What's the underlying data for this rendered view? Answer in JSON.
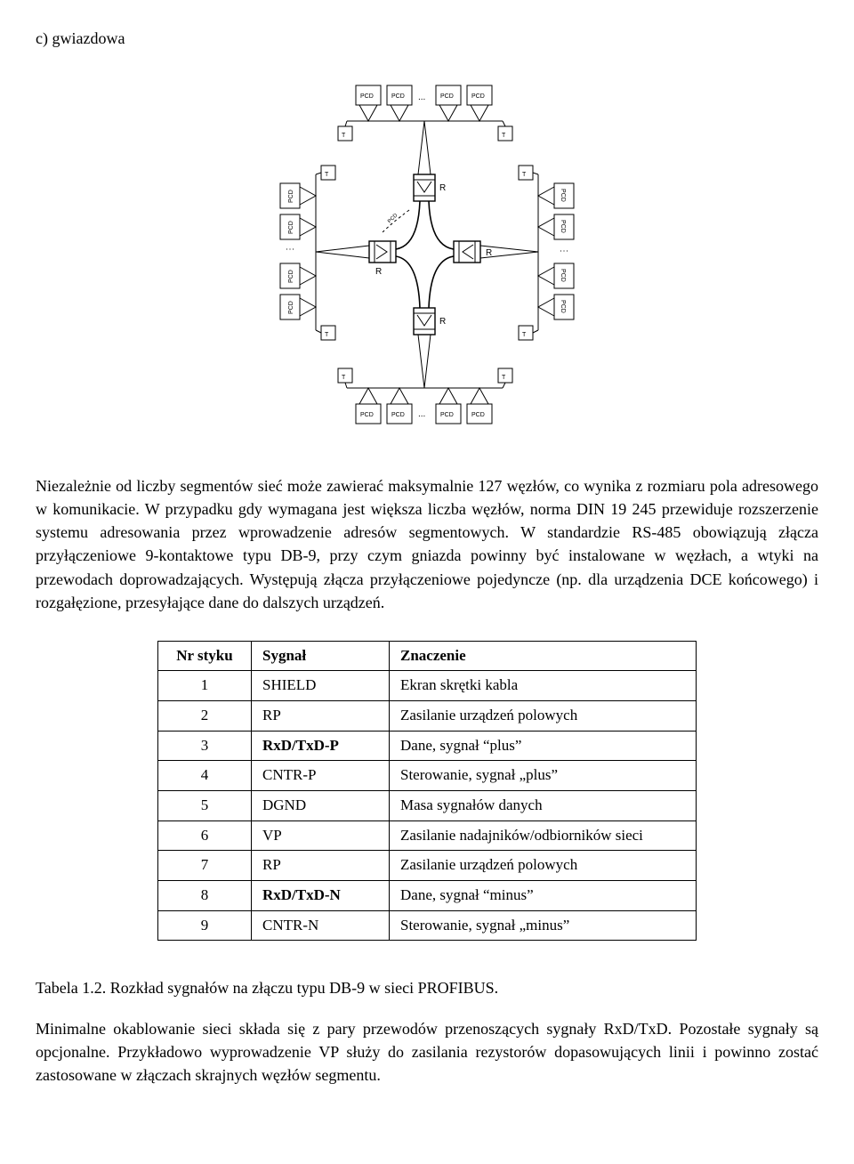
{
  "heading": "c) gwiazdowa",
  "diagram": {
    "node_label": "PCD",
    "terminator_label": "T",
    "repeater_label": "R",
    "ellipsis": "..."
  },
  "para1": "Niezależnie od liczby segmentów sieć może zawierać maksymalnie 127 węzłów, co wynika z rozmiaru pola adresowego w komunikacie. W przypadku gdy wymagana jest większa liczba węzłów, norma DIN 19 245 przewiduje rozszerzenie systemu adresowania przez wprowadzenie adresów segmentowych. W standardzie RS-485 obowiązują złącza przyłączeniowe 9-kontaktowe typu DB-9, przy czym gniazda powinny być instalowane w węzłach, a wtyki na przewodach doprowadzających. Występują złącza przyłączeniowe pojedyncze (np. dla urządzenia DCE końcowego) i rozgałęzione, przesyłające dane do dalszych urządzeń.",
  "table": {
    "headers": [
      "Nr styku",
      "Sygnał",
      "Znaczenie"
    ],
    "rows": [
      {
        "nr": "1",
        "sig": "SHIELD",
        "bold": false,
        "znacz": "Ekran skrętki kabla"
      },
      {
        "nr": "2",
        "sig": "RP",
        "bold": false,
        "znacz": "Zasilanie urządzeń polowych"
      },
      {
        "nr": "3",
        "sig": "RxD/TxD-P",
        "bold": true,
        "znacz": "Dane, sygnał “plus”"
      },
      {
        "nr": "4",
        "sig": "CNTR-P",
        "bold": false,
        "znacz": "Sterowanie, sygnał „plus”"
      },
      {
        "nr": "5",
        "sig": "DGND",
        "bold": false,
        "znacz": "Masa sygnałów danych"
      },
      {
        "nr": "6",
        "sig": "VP",
        "bold": false,
        "znacz": "Zasilanie nadajników/odbiorników sieci"
      },
      {
        "nr": "7",
        "sig": "RP",
        "bold": false,
        "znacz": "Zasilanie urządzeń polowych"
      },
      {
        "nr": "8",
        "sig": "RxD/TxD-N",
        "bold": true,
        "znacz": "Dane, sygnał “minus”"
      },
      {
        "nr": "9",
        "sig": "CNTR-N",
        "bold": false,
        "znacz": "Sterowanie, sygnał „minus”"
      }
    ]
  },
  "caption": "Tabela 1.2. Rozkład sygnałów na złączu typu DB-9 w sieci PROFIBUS.",
  "footer": "Minimalne okablowanie sieci składa się z pary przewodów przenoszących sygnały RxD/TxD. Pozostałe sygnały są opcjonalne. Przykładowo wyprowadzenie VP służy do zasilania rezystorów dopasowujących linii i powinno zostać zastosowane w złączach skrajnych węzłów segmentu."
}
